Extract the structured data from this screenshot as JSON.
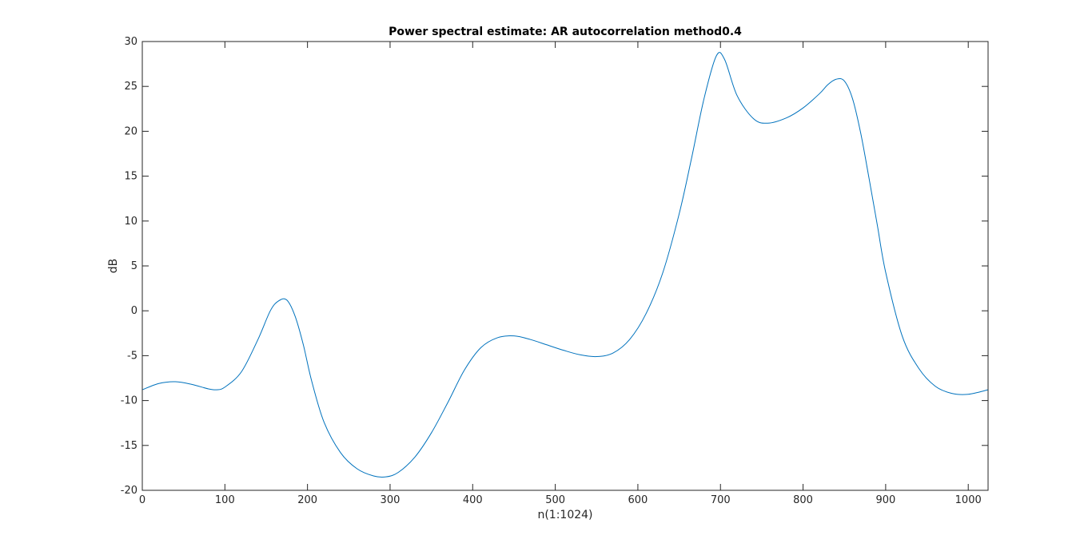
{
  "chart_data": {
    "type": "line",
    "title": "Power spectral estimate: AR autocorrelation method0.4",
    "xlabel": "n(1:1024)",
    "ylabel": "dB",
    "xlim": [
      0,
      1024
    ],
    "ylim": [
      -20,
      30
    ],
    "xticks": [
      0,
      100,
      200,
      300,
      400,
      500,
      600,
      700,
      800,
      900,
      1000
    ],
    "yticks": [
      -20,
      -15,
      -10,
      -5,
      0,
      5,
      10,
      15,
      20,
      25,
      30
    ],
    "xtick_labels": [
      "0",
      "100",
      "200",
      "300",
      "400",
      "500",
      "600",
      "700",
      "800",
      "900",
      "1000"
    ],
    "ytick_labels": [
      "-20",
      "-15",
      "-10",
      "-5",
      "0",
      "5",
      "10",
      "15",
      "20",
      "25",
      "30"
    ],
    "grid": false,
    "line_color": "#0072BD",
    "series": [
      {
        "x": [
          0,
          20,
          40,
          60,
          80,
          90,
          100,
          120,
          140,
          155,
          165,
          175,
          185,
          195,
          205,
          220,
          240,
          260,
          280,
          295,
          310,
          330,
          350,
          370,
          390,
          410,
          430,
          450,
          470,
          490,
          510,
          530,
          550,
          570,
          590,
          610,
          630,
          650,
          665,
          680,
          695,
          705,
          720,
          740,
          757,
          780,
          800,
          820,
          830,
          840,
          850,
          860,
          870,
          880,
          890,
          900,
          920,
          940,
          960,
          980,
          1000,
          1024
        ],
        "y": [
          -8.8,
          -8.1,
          -7.9,
          -8.2,
          -8.7,
          -8.8,
          -8.5,
          -6.8,
          -3.2,
          0.0,
          1.1,
          1.2,
          -0.6,
          -3.8,
          -7.8,
          -12.4,
          -15.8,
          -17.6,
          -18.4,
          -18.5,
          -18.0,
          -16.3,
          -13.6,
          -10.2,
          -6.6,
          -4.1,
          -3.0,
          -2.8,
          -3.2,
          -3.8,
          -4.4,
          -4.9,
          -5.1,
          -4.7,
          -3.2,
          -0.3,
          4.2,
          10.8,
          17.0,
          23.6,
          28.4,
          28.0,
          24.0,
          21.4,
          20.9,
          21.5,
          22.6,
          24.2,
          25.2,
          25.8,
          25.6,
          23.6,
          19.7,
          14.7,
          9.5,
          4.3,
          -2.8,
          -6.4,
          -8.4,
          -9.2,
          -9.3,
          -8.8
        ]
      }
    ]
  }
}
